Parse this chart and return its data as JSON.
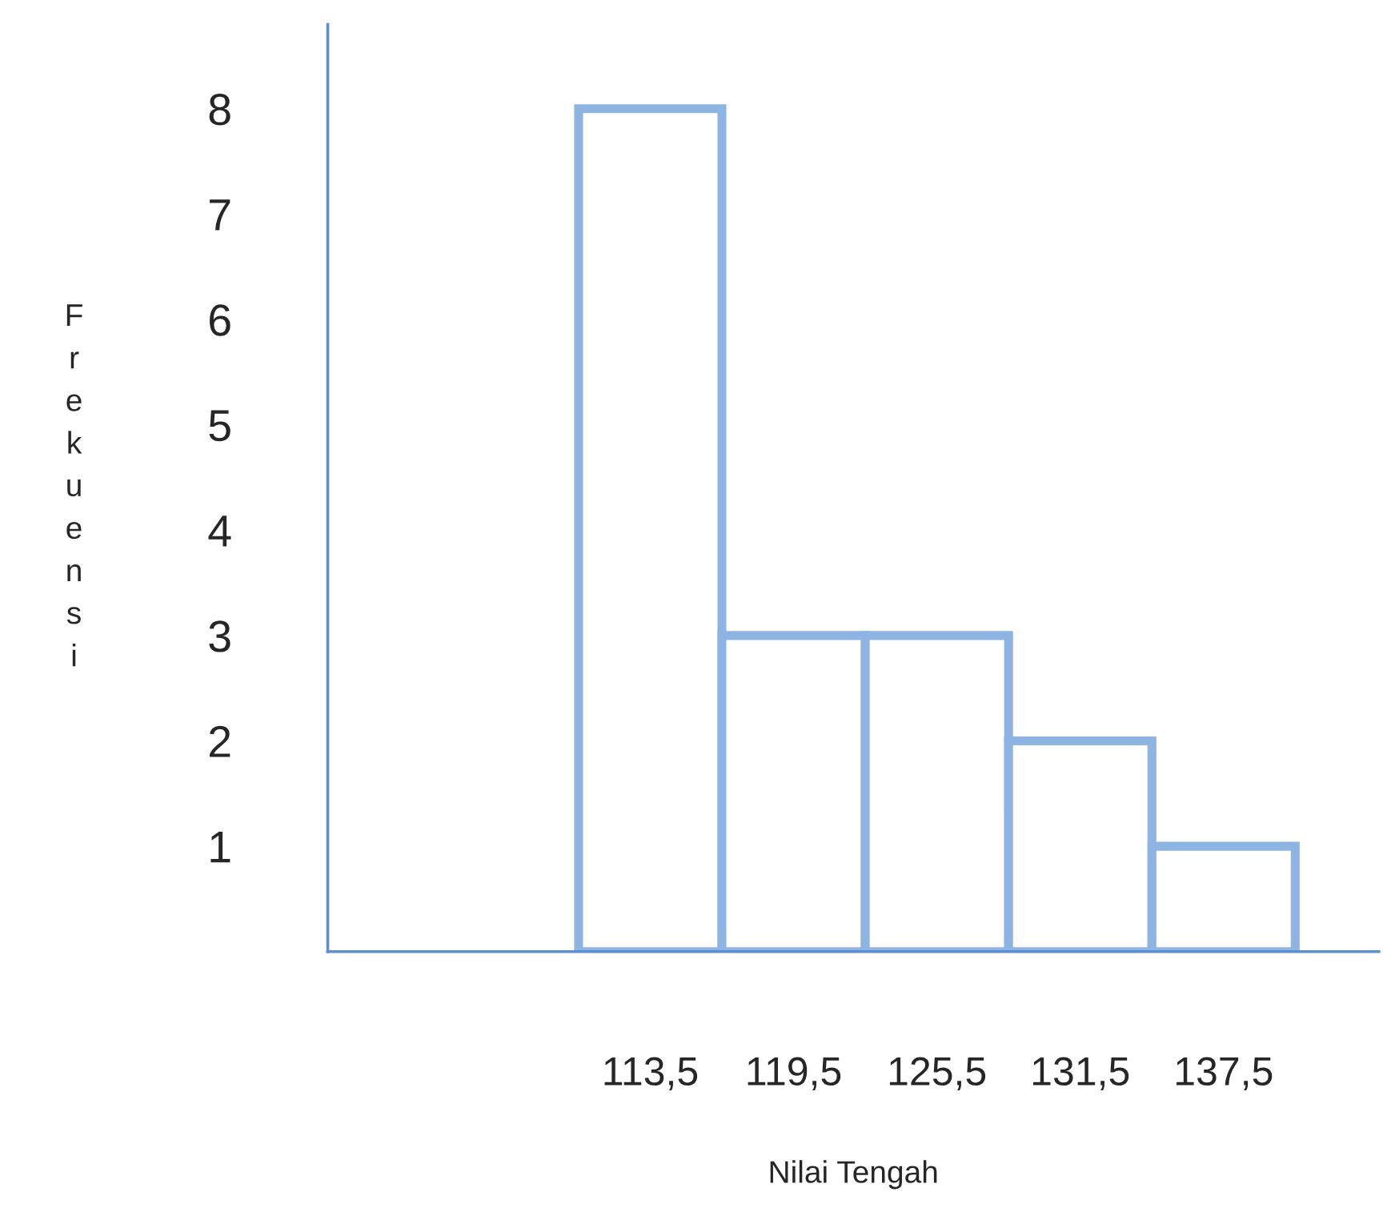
{
  "chart_data": {
    "type": "histogram",
    "xlabel": "Nilai Tengah",
    "ylabel": "Frekuensi",
    "bins": [
      110.5,
      116.5,
      122.5,
      128.5,
      134.5,
      140.5
    ],
    "values": [
      8,
      3,
      3,
      2,
      1
    ],
    "color": "#8eb4e3",
    "xlim": [
      100,
      144
    ],
    "ylim": [
      0,
      8.8
    ],
    "xticks": [
      {
        "value": 113.5,
        "label": "113,5"
      },
      {
        "value": 119.5,
        "label": "119,5"
      },
      {
        "value": 125.5,
        "label": "125,5"
      },
      {
        "value": 131.5,
        "label": "131,5"
      },
      {
        "value": 137.5,
        "label": "137,5"
      }
    ],
    "yticks": [
      1,
      2,
      3,
      4,
      5,
      6,
      7,
      8
    ],
    "grid": false
  }
}
